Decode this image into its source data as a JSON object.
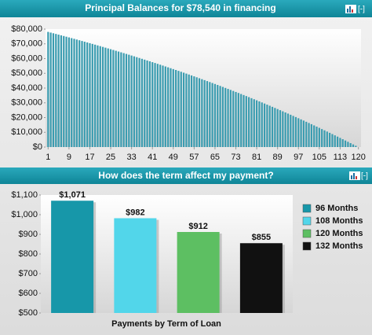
{
  "chart_data": [
    {
      "type": "bar",
      "title": "Principal Balances for $78,540 in financing",
      "toggle": "[-]",
      "color": "#3a9cb0",
      "x": [
        1,
        2,
        3,
        4,
        5,
        6,
        7,
        8,
        9,
        10,
        11,
        12,
        13,
        14,
        15,
        16,
        17,
        18,
        19,
        20,
        21,
        22,
        23,
        24,
        25,
        26,
        27,
        28,
        29,
        30,
        31,
        32,
        33,
        34,
        35,
        36,
        37,
        38,
        39,
        40,
        41,
        42,
        43,
        44,
        45,
        46,
        47,
        48,
        49,
        50,
        51,
        52,
        53,
        54,
        55,
        56,
        57,
        58,
        59,
        60,
        61,
        62,
        63,
        64,
        65,
        66,
        67,
        68,
        69,
        70,
        71,
        72,
        73,
        74,
        75,
        76,
        77,
        78,
        79,
        80,
        81,
        82,
        83,
        84,
        85,
        86,
        87,
        88,
        89,
        90,
        91,
        92,
        93,
        94,
        95,
        96,
        97,
        98,
        99,
        100,
        101,
        102,
        103,
        104,
        105,
        106,
        107,
        108,
        109,
        110,
        111,
        112,
        113,
        114,
        115,
        116,
        117,
        118,
        119,
        120
      ],
      "values": [
        78086,
        77629,
        77170,
        76708,
        76243,
        75776,
        75306,
        74833,
        74357,
        73879,
        73398,
        72914,
        72427,
        71937,
        71444,
        70949,
        70451,
        69950,
        69446,
        68939,
        68429,
        67916,
        67400,
        66881,
        66359,
        65834,
        65306,
        64775,
        64241,
        63704,
        63163,
        62619,
        62072,
        61522,
        60969,
        60412,
        59852,
        59289,
        58723,
        58153,
        57580,
        57004,
        56424,
        55841,
        55255,
        54665,
        54072,
        53475,
        52875,
        52271,
        51664,
        51053,
        50439,
        49821,
        49200,
        48575,
        47946,
        47314,
        46678,
        46038,
        45394,
        44747,
        44096,
        43441,
        42782,
        42119,
        41453,
        40783,
        40109,
        39431,
        38749,
        38063,
        37373,
        36679,
        35981,
        35279,
        34573,
        33863,
        33148,
        32429,
        31706,
        30979,
        30248,
        29512,
        28772,
        28028,
        27279,
        26526,
        25769,
        25007,
        24241,
        23470,
        22695,
        21915,
        21131,
        20342,
        19549,
        18751,
        17948,
        17141,
        16329,
        15512,
        14690,
        13864,
        13033,
        12197,
        11356,
        10510,
        9659,
        8803,
        7942,
        7076,
        6205,
        5329,
        4448,
        3562,
        2671,
        1775,
        873,
        0
      ],
      "xlim": [
        0,
        121
      ],
      "xticks": [
        1,
        9,
        17,
        25,
        33,
        41,
        49,
        57,
        65,
        73,
        81,
        89,
        97,
        105,
        113,
        120
      ],
      "ylim": [
        0,
        80000
      ],
      "yticks": [
        {
          "value": 0,
          "label": "$0"
        },
        {
          "value": 10000,
          "label": "$10,000"
        },
        {
          "value": 20000,
          "label": "$20,000"
        },
        {
          "value": 30000,
          "label": "$30,000"
        },
        {
          "value": 40000,
          "label": "$40,000"
        },
        {
          "value": 50000,
          "label": "$50,000"
        },
        {
          "value": 60000,
          "label": "$60,000"
        },
        {
          "value": 70000,
          "label": "$70,000"
        },
        {
          "value": 80000,
          "label": "$80,000"
        }
      ]
    },
    {
      "type": "bar",
      "title": "How does the term affect my payment?",
      "toggle": "[-]",
      "x_label": "Payments by Term of Loan",
      "series": [
        {
          "name": "96 Months",
          "color": "#1797a9",
          "values": [
            1071
          ],
          "value_labels": [
            "$1,071"
          ]
        },
        {
          "name": "108 Months",
          "color": "#52d6ea",
          "values": [
            982
          ],
          "value_labels": [
            "$982"
          ]
        },
        {
          "name": "120 Months",
          "color": "#5dbf62",
          "values": [
            912
          ],
          "value_labels": [
            "$912"
          ]
        },
        {
          "name": "132 Months",
          "color": "#111111",
          "values": [
            855
          ],
          "value_labels": [
            "$855"
          ]
        }
      ],
      "ylim": [
        500,
        1100
      ],
      "yticks": [
        {
          "value": 500,
          "label": "$500"
        },
        {
          "value": 600,
          "label": "$600"
        },
        {
          "value": 700,
          "label": "$700"
        },
        {
          "value": 800,
          "label": "$800"
        },
        {
          "value": 900,
          "label": "$900"
        },
        {
          "value": 1000,
          "label": "$1,000"
        },
        {
          "value": 1100,
          "label": "$1,100"
        }
      ]
    }
  ]
}
